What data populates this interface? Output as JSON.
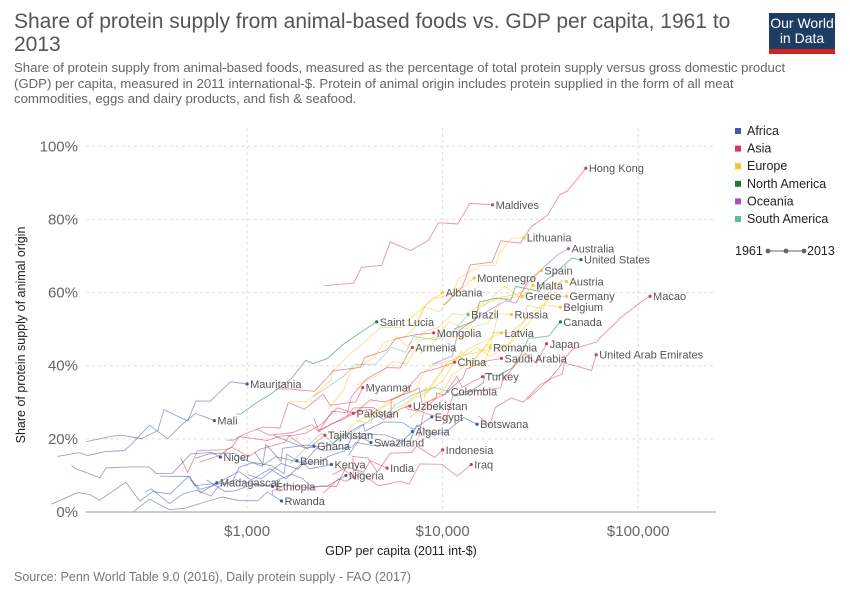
{
  "header": {
    "title": "Share of protein supply from animal-based foods vs. GDP per capita, 1961 to 2013",
    "subtitle": "Share of protein supply from animal-based foods, measured as the percentage of total protein supply versus gross domestic product (GDP) per capita, measured in 2011 international-$. Protein of animal origin includes protein supplied in the form of all meat commodities, eggs and dairy products, and fish & seafood.",
    "logo_line1": "Our World",
    "logo_line2": "in Data"
  },
  "footer": {
    "source": "Source: Penn World Table 9.0 (2016), Daily protein supply - FAO (2017)"
  },
  "timeline": {
    "start": "1961",
    "end": "2013"
  },
  "colors": {
    "Africa": "#3f5ba8",
    "Asia": "#d73c50",
    "Europe": "#f6c730",
    "North America": "#1f7a3a",
    "Oceania": "#a652ba",
    "South America": "#5cc08a",
    "grid": "#dddddd",
    "logo_bg": "#1d3d63",
    "logo_bar": "#ce261e"
  },
  "chart_data": {
    "type": "scatter",
    "xlabel": "GDP per capita (2011 int-$)",
    "ylabel": "Share of protein supply of animal origin",
    "x_scale": "log",
    "xlim": [
      150,
      250000
    ],
    "ylim": [
      0,
      105
    ],
    "x_ticks": [
      {
        "value": 1000,
        "label": "$1,000"
      },
      {
        "value": 10000,
        "label": "$10,000"
      },
      {
        "value": 100000,
        "label": "$100,000"
      }
    ],
    "y_ticks": [
      {
        "value": 0,
        "label": "0%"
      },
      {
        "value": 20,
        "label": "20%"
      },
      {
        "value": 40,
        "label": "40%"
      },
      {
        "value": 60,
        "label": "60%"
      },
      {
        "value": 80,
        "label": "80%"
      },
      {
        "value": 100,
        "label": "100%"
      }
    ],
    "grid": true,
    "legend_position": "right",
    "series": [
      {
        "name": "Africa"
      },
      {
        "name": "Asia"
      },
      {
        "name": "Europe"
      },
      {
        "name": "North America"
      },
      {
        "name": "Oceania"
      },
      {
        "name": "South America"
      }
    ],
    "labeled_points": [
      {
        "label": "Hong Kong",
        "x": 54000,
        "y": 94,
        "region": "Asia"
      },
      {
        "label": "Maldives",
        "x": 18000,
        "y": 84,
        "region": "Asia"
      },
      {
        "label": "Lithuania",
        "x": 26000,
        "y": 75,
        "region": "Europe"
      },
      {
        "label": "Australia",
        "x": 44000,
        "y": 72,
        "region": "Oceania"
      },
      {
        "label": "United States",
        "x": 51000,
        "y": 69,
        "region": "North America"
      },
      {
        "label": "Spain",
        "x": 32000,
        "y": 66,
        "region": "Europe"
      },
      {
        "label": "Montenegro",
        "x": 14500,
        "y": 64,
        "region": "Europe"
      },
      {
        "label": "Austria",
        "x": 43000,
        "y": 63,
        "region": "Europe"
      },
      {
        "label": "Malta",
        "x": 29000,
        "y": 62,
        "region": "Europe"
      },
      {
        "label": "Albania",
        "x": 10000,
        "y": 60,
        "region": "Europe"
      },
      {
        "label": "Greece",
        "x": 25500,
        "y": 59,
        "region": "Europe"
      },
      {
        "label": "Germany",
        "x": 43000,
        "y": 59,
        "region": "Europe"
      },
      {
        "label": "Macao",
        "x": 115000,
        "y": 59,
        "region": "Asia"
      },
      {
        "label": "Belgium",
        "x": 40000,
        "y": 56,
        "region": "Europe"
      },
      {
        "label": "Brazil",
        "x": 13500,
        "y": 54,
        "region": "South America"
      },
      {
        "label": "Russia",
        "x": 22500,
        "y": 54,
        "region": "Europe"
      },
      {
        "label": "Saint Lucia",
        "x": 4600,
        "y": 52,
        "region": "North America"
      },
      {
        "label": "Canada",
        "x": 40000,
        "y": 52,
        "region": "North America"
      },
      {
        "label": "Mongolia",
        "x": 9000,
        "y": 49,
        "region": "Asia"
      },
      {
        "label": "Latvia",
        "x": 20000,
        "y": 49,
        "region": "Europe"
      },
      {
        "label": "Japan",
        "x": 34000,
        "y": 46,
        "region": "Asia"
      },
      {
        "label": "Armenia",
        "x": 7000,
        "y": 45,
        "region": "Asia"
      },
      {
        "label": "Romania",
        "x": 17500,
        "y": 45,
        "region": "Europe"
      },
      {
        "label": "United Arab Emirates",
        "x": 61000,
        "y": 43,
        "region": "Asia"
      },
      {
        "label": "China",
        "x": 11500,
        "y": 41,
        "region": "Asia"
      },
      {
        "label": "Saudi Arabia",
        "x": 20000,
        "y": 42,
        "region": "Asia"
      },
      {
        "label": "Turkey",
        "x": 16000,
        "y": 37,
        "region": "Asia"
      },
      {
        "label": "Mauritania",
        "x": 1000,
        "y": 35,
        "region": "Africa"
      },
      {
        "label": "Myanmar",
        "x": 3900,
        "y": 34,
        "region": "Asia"
      },
      {
        "label": "Colombia",
        "x": 10600,
        "y": 33,
        "region": "South America"
      },
      {
        "label": "Uzbekistan",
        "x": 6800,
        "y": 29,
        "region": "Asia"
      },
      {
        "label": "Pakistan",
        "x": 3500,
        "y": 27,
        "region": "Asia"
      },
      {
        "label": "Egypt",
        "x": 8800,
        "y": 26,
        "region": "Africa"
      },
      {
        "label": "Mali",
        "x": 680,
        "y": 25,
        "region": "Africa"
      },
      {
        "label": "Botswana",
        "x": 15000,
        "y": 24,
        "region": "Africa"
      },
      {
        "label": "Algeria",
        "x": 7000,
        "y": 22,
        "region": "Africa"
      },
      {
        "label": "Tajikistan",
        "x": 2500,
        "y": 21,
        "region": "Asia"
      },
      {
        "label": "Ghana",
        "x": 2200,
        "y": 18,
        "region": "Africa"
      },
      {
        "label": "Swaziland",
        "x": 4300,
        "y": 19,
        "region": "Africa"
      },
      {
        "label": "Indonesia",
        "x": 10000,
        "y": 17,
        "region": "Asia"
      },
      {
        "label": "Niger",
        "x": 730,
        "y": 15,
        "region": "Africa"
      },
      {
        "label": "Benin",
        "x": 1800,
        "y": 14,
        "region": "Africa"
      },
      {
        "label": "Kenya",
        "x": 2700,
        "y": 13,
        "region": "Africa"
      },
      {
        "label": "Iraq",
        "x": 14000,
        "y": 13,
        "region": "Asia"
      },
      {
        "label": "India",
        "x": 5200,
        "y": 12,
        "region": "Asia"
      },
      {
        "label": "Nigeria",
        "x": 3200,
        "y": 10,
        "region": "Africa"
      },
      {
        "label": "Madagascar",
        "x": 700,
        "y": 8,
        "region": "Africa"
      },
      {
        "label": "Ethiopia",
        "x": 1350,
        "y": 7,
        "region": "Africa"
      },
      {
        "label": "Rwanda",
        "x": 1500,
        "y": 3,
        "region": "Africa"
      }
    ]
  }
}
